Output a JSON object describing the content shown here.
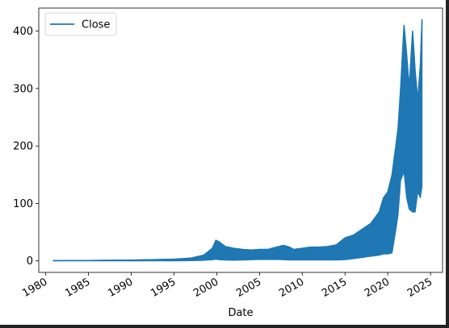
{
  "chart_data": {
    "type": "line",
    "title": "",
    "xlabel": "Date",
    "ylabel": "",
    "xlim": [
      1979.2,
      2026.4
    ],
    "ylim": [
      -20,
      440
    ],
    "x_ticks": [
      1980,
      1985,
      1990,
      1995,
      2000,
      2005,
      2010,
      2015,
      2020,
      2025
    ],
    "x_tick_labels": [
      "1980",
      "1985",
      "1990",
      "1995",
      "2000",
      "2005",
      "2010",
      "2015",
      "2020",
      "2025"
    ],
    "y_ticks": [
      0,
      100,
      200,
      300,
      400
    ],
    "y_tick_labels": [
      "0",
      "100",
      "200",
      "300",
      "400"
    ],
    "legend": {
      "position": "top-left",
      "entries": [
        "Close"
      ]
    },
    "grid": false,
    "series": [
      {
        "name": "Close",
        "color": "#1f77b4",
        "note": "dense series drawn as min/max envelope per period",
        "x": [
          1980.9,
          1985,
          1990,
          1995,
          1997,
          1998.5,
          1999.5,
          1999.9,
          2000.3,
          2001,
          2002,
          2003,
          2004,
          2005,
          2006,
          2007,
          2007.8,
          2008.5,
          2009,
          2010,
          2011,
          2012,
          2013,
          2014,
          2015,
          2016,
          2017,
          2018,
          2019,
          2019.5,
          2020,
          2020.5,
          2020.9,
          2021.2,
          2021.5,
          2021.9,
          2022.2,
          2022.5,
          2022.9,
          2023.2,
          2023.5,
          2023.8,
          2024.0
        ],
        "high": [
          0.5,
          0.8,
          1.5,
          3,
          5,
          10,
          22,
          36,
          33,
          25,
          22,
          20,
          19,
          20,
          20,
          24,
          27,
          24,
          20,
          22,
          24,
          24,
          25,
          28,
          40,
          45,
          55,
          65,
          85,
          110,
          120,
          150,
          195,
          230,
          300,
          410,
          360,
          300,
          400,
          330,
          280,
          340,
          420
        ],
        "low": [
          0,
          0,
          0,
          0.2,
          0.5,
          1,
          2,
          3,
          2,
          1.5,
          1.2,
          1.5,
          2,
          2.5,
          2.5,
          2.5,
          2,
          1.5,
          1.5,
          1.5,
          1.5,
          1.5,
          1.5,
          1.5,
          2,
          4,
          6,
          8,
          10,
          12,
          12,
          14,
          50,
          80,
          140,
          155,
          110,
          90,
          85,
          85,
          120,
          110,
          130
        ]
      }
    ]
  }
}
